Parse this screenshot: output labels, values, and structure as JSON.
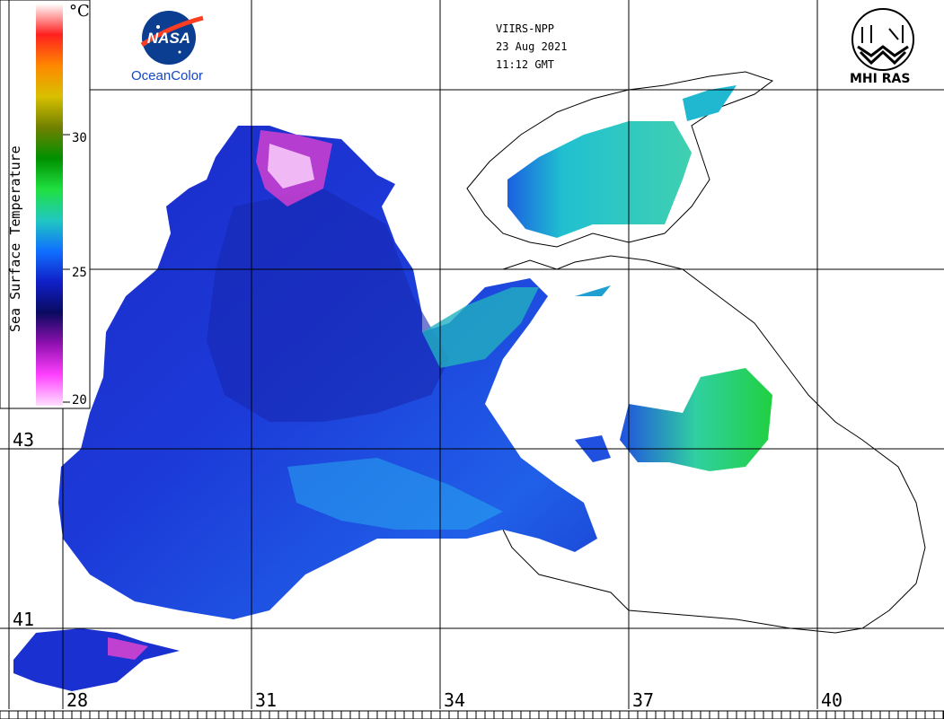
{
  "header": {
    "satellite": "VIIRS-NPP",
    "date": "23 Aug 2021",
    "time": "11:12 GMT"
  },
  "logos": {
    "left_name": "NASA",
    "left_caption": "OceanColor",
    "right_caption": "MHI RAS"
  },
  "colorbar": {
    "title": "Sea Surface Temperature",
    "unit": "°C",
    "ticks": [
      "30",
      "25",
      "20"
    ],
    "colors": [
      "#ffffff",
      "#ff2020",
      "#ff8800",
      "#d8c000",
      "#708000",
      "#009000",
      "#20e040",
      "#20c8c0",
      "#1070ff",
      "#1020c8",
      "#0a0a60",
      "#9010b0",
      "#ff40ff",
      "#ffe0ff"
    ]
  },
  "graticule": {
    "latitudes": [
      "43",
      "41"
    ],
    "longitudes": [
      "28",
      "31",
      "34",
      "37",
      "40"
    ]
  }
}
